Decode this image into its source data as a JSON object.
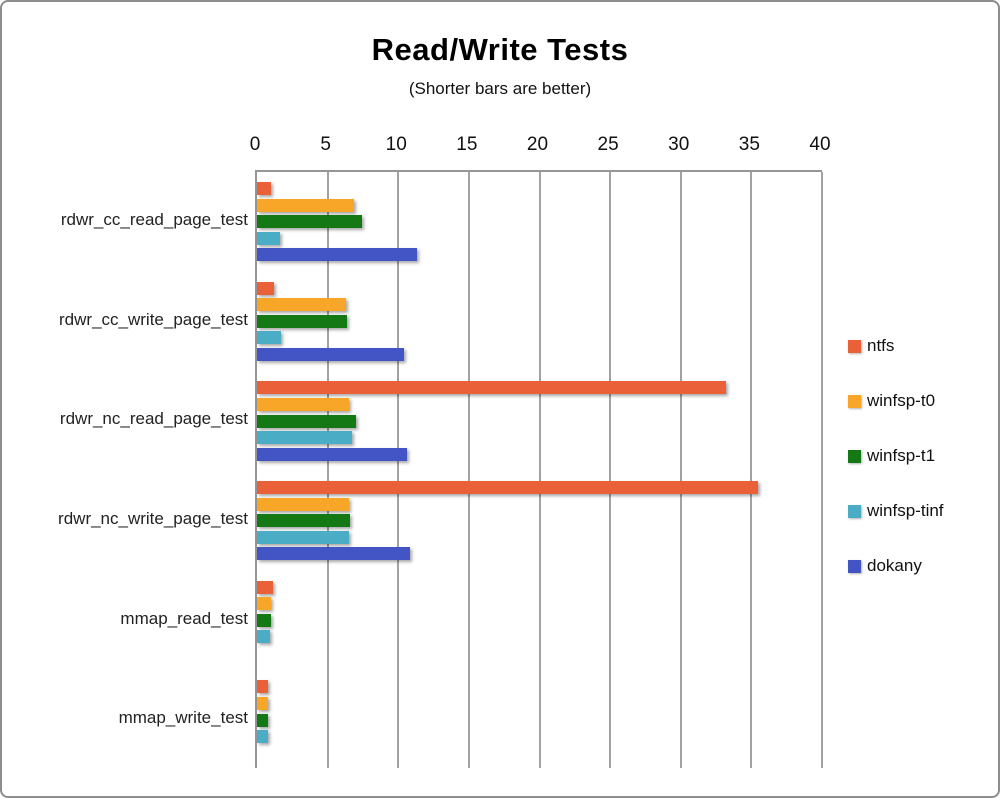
{
  "window": {
    "background": "#ffffff",
    "border_color": "#8d8d8d"
  },
  "chart_data": {
    "type": "bar",
    "orientation": "horizontal",
    "title": "Read/Write Tests",
    "subtitle": "(Shorter bars are better)",
    "xlabel": "",
    "ylabel": "",
    "xlim": [
      0,
      40
    ],
    "x_ticks": [
      0,
      5,
      10,
      15,
      20,
      25,
      30,
      35,
      40
    ],
    "grid": "vertical-only",
    "legend_position": "right",
    "axis_color": "#969696",
    "gridline_color": "#a2a2a2",
    "categories": [
      "rdwr_cc_read_page_test",
      "rdwr_cc_write_page_test",
      "rdwr_nc_read_page_test",
      "rdwr_nc_write_page_test",
      "mmap_read_test",
      "mmap_write_test"
    ],
    "series": [
      {
        "name": "ntfs",
        "color": "#EA6038",
        "values": [
          1.0,
          1.2,
          33.2,
          35.5,
          1.1,
          0.8
        ]
      },
      {
        "name": "winfsp-t0",
        "color": "#F8A628",
        "values": [
          6.9,
          6.3,
          6.5,
          6.5,
          1.0,
          0.8
        ]
      },
      {
        "name": "winfsp-t1",
        "color": "#147814",
        "values": [
          7.4,
          6.4,
          7.0,
          6.6,
          1.0,
          0.8
        ]
      },
      {
        "name": "winfsp-tinf",
        "color": "#4BACC6",
        "values": [
          1.6,
          1.7,
          6.7,
          6.5,
          0.9,
          0.8
        ]
      },
      {
        "name": "dokany",
        "color": "#4355C4",
        "values": [
          11.3,
          10.4,
          10.6,
          10.8,
          null,
          null
        ]
      }
    ]
  }
}
